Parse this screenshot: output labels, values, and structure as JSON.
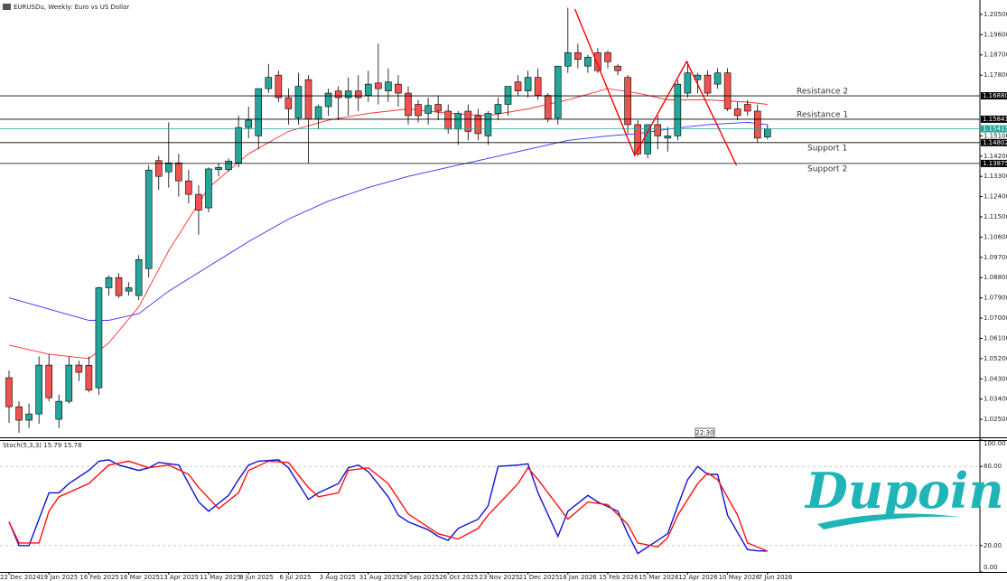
{
  "chart_data": [
    {
      "type": "candlestick",
      "title": "EURUSDu, Weekly: Euro vs US Dollar",
      "up_color": "#26a69a",
      "down_color": "#ef5350",
      "categories": [
        "22 Dec 2024",
        null,
        null,
        null,
        "19 Jan 2025",
        null,
        null,
        null,
        "16 Feb 2025",
        null,
        null,
        null,
        "16 Mar 2025",
        null,
        null,
        null,
        "13 Apr 2025",
        null,
        null,
        null,
        "11 May 2025",
        null,
        null,
        null,
        "8 Jun 2025",
        null,
        null,
        null,
        "6 Jul 2025",
        null,
        null,
        null,
        "3 Aug 2025",
        null,
        null,
        null,
        "31 Aug 2025",
        null,
        null,
        null,
        "28 Sep 2025",
        null,
        null,
        null,
        "26 Oct 2025",
        null,
        null,
        null,
        "23 Nov 2025",
        null,
        null,
        null,
        "21 Dec 2025",
        null,
        null,
        null,
        "18 Jan 2026",
        null,
        null,
        null,
        "15 Feb 2026",
        null,
        null,
        null,
        "15 Mar 2026",
        null,
        null,
        null,
        "12 Apr 2026",
        null,
        null,
        null,
        "10 May 2026",
        null,
        null,
        null,
        "7 Jun 2026"
      ],
      "ohlc": [
        [
          1.0435,
          1.0467,
          1.0234,
          1.0306
        ],
        [
          1.0306,
          1.033,
          1.019,
          1.0246
        ],
        [
          1.0246,
          1.032,
          1.021,
          1.0274
        ],
        [
          1.0274,
          1.053,
          1.023,
          1.0491
        ],
        [
          1.0491,
          1.054,
          1.033,
          1.0346
        ],
        [
          1.025,
          1.036,
          1.021,
          1.033
        ],
        [
          1.033,
          1.053,
          1.032,
          1.0491
        ],
        [
          1.0491,
          1.051,
          1.042,
          1.0459
        ],
        [
          1.049,
          1.053,
          1.037,
          1.038
        ],
        [
          1.039,
          1.084,
          1.0359,
          1.0835
        ],
        [
          1.0835,
          1.089,
          1.08,
          1.088
        ],
        [
          1.088,
          1.09,
          1.079,
          1.08
        ],
        [
          1.082,
          1.086,
          1.08,
          1.0835
        ],
        [
          1.08,
          1.098,
          1.078,
          1.096
        ],
        [
          1.092,
          1.138,
          1.088,
          1.1358
        ],
        [
          1.14,
          1.142,
          1.127,
          1.133
        ],
        [
          1.135,
          1.157,
          1.128,
          1.139
        ],
        [
          1.139,
          1.143,
          1.124,
          1.131
        ],
        [
          1.131,
          1.136,
          1.121,
          1.125
        ],
        [
          1.125,
          1.129,
          1.107,
          1.118
        ],
        [
          1.119,
          1.137,
          1.117,
          1.1363
        ],
        [
          1.136,
          1.139,
          1.133,
          1.137
        ],
        [
          1.136,
          1.141,
          1.135,
          1.1398
        ],
        [
          1.139,
          1.16,
          1.137,
          1.1547
        ],
        [
          1.1547,
          1.164,
          1.15,
          1.158
        ],
        [
          1.151,
          1.172,
          1.145,
          1.172
        ],
        [
          1.172,
          1.183,
          1.17,
          1.177
        ],
        [
          1.178,
          1.18,
          1.166,
          1.168
        ],
        [
          1.168,
          1.172,
          1.156,
          1.163
        ],
        [
          1.159,
          1.179,
          1.156,
          1.173
        ],
        [
          1.176,
          1.178,
          1.139,
          1.1585
        ],
        [
          1.1585,
          1.165,
          1.154,
          1.164
        ],
        [
          1.164,
          1.172,
          1.16,
          1.17
        ],
        [
          1.171,
          1.173,
          1.158,
          1.168
        ],
        [
          1.168,
          1.177,
          1.16,
          1.171
        ],
        [
          1.171,
          1.178,
          1.162,
          1.168
        ],
        [
          1.169,
          1.18,
          1.166,
          1.174
        ],
        [
          1.1745,
          1.192,
          1.165,
          1.172
        ],
        [
          1.171,
          1.181,
          1.166,
          1.175
        ],
        [
          1.174,
          1.178,
          1.164,
          1.17
        ],
        [
          1.17,
          1.173,
          1.156,
          1.16
        ],
        [
          1.165,
          1.167,
          1.157,
          1.16
        ],
        [
          1.161,
          1.168,
          1.156,
          1.1645
        ],
        [
          1.165,
          1.169,
          1.158,
          1.162
        ],
        [
          1.162,
          1.165,
          1.152,
          1.154
        ],
        [
          1.154,
          1.162,
          1.147,
          1.161
        ],
        [
          1.162,
          1.165,
          1.149,
          1.153
        ],
        [
          1.16,
          1.163,
          1.149,
          1.152
        ],
        [
          1.151,
          1.162,
          1.147,
          1.161
        ],
        [
          1.161,
          1.168,
          1.158,
          1.165
        ],
        [
          1.165,
          1.173,
          1.16,
          1.173
        ],
        [
          1.175,
          1.178,
          1.169,
          1.171
        ],
        [
          1.171,
          1.18,
          1.168,
          1.177
        ],
        [
          1.177,
          1.181,
          1.167,
          1.169
        ],
        [
          1.169,
          1.17,
          1.157,
          1.1585
        ],
        [
          1.159,
          1.182,
          1.156,
          1.182
        ],
        [
          1.182,
          1.208,
          1.179,
          1.188
        ],
        [
          1.188,
          1.192,
          1.181,
          1.185
        ],
        [
          1.182,
          1.187,
          1.179,
          1.186
        ],
        [
          1.188,
          1.19,
          1.179,
          1.18
        ],
        [
          1.188,
          1.189,
          1.181,
          1.184
        ],
        [
          1.182,
          1.183,
          1.178,
          1.18
        ],
        [
          1.177,
          1.178,
          1.152,
          1.156
        ],
        [
          1.156,
          1.158,
          1.142,
          1.143
        ],
        [
          1.143,
          1.156,
          1.141,
          1.156
        ],
        [
          1.156,
          1.16,
          1.145,
          1.151
        ],
        [
          1.15,
          1.155,
          1.144,
          1.151
        ],
        [
          1.151,
          1.176,
          1.149,
          1.174
        ],
        [
          1.17,
          1.184,
          1.168,
          1.179
        ],
        [
          1.176,
          1.179,
          1.17,
          1.178
        ],
        [
          1.178,
          1.18,
          1.169,
          1.17
        ],
        [
          1.174,
          1.181,
          1.172,
          1.179
        ],
        [
          1.179,
          1.181,
          1.162,
          1.163
        ],
        [
          1.163,
          1.166,
          1.158,
          1.16
        ],
        [
          1.165,
          1.167,
          1.16,
          1.162
        ],
        [
          1.162,
          1.165,
          1.148,
          1.15
        ],
        [
          1.1505,
          1.156,
          1.1495,
          1.1541
        ]
      ],
      "ma": [
        {
          "color": "#ff3030",
          "x": [
            0,
            4,
            8,
            10,
            13,
            16,
            20,
            24,
            28,
            32,
            36,
            40,
            44,
            48,
            52,
            56,
            60,
            63,
            66,
            70,
            74,
            76
          ],
          "values": [
            1.058,
            1.054,
            1.052,
            1.059,
            1.075,
            1.1,
            1.128,
            1.143,
            1.153,
            1.158,
            1.161,
            1.163,
            1.161,
            1.16,
            1.163,
            1.167,
            1.172,
            1.17,
            1.167,
            1.167,
            1.166,
            1.165
          ]
        },
        {
          "color": "#3030ff",
          "x": [
            0,
            4,
            8,
            10,
            13,
            16,
            20,
            24,
            28,
            32,
            36,
            40,
            44,
            48,
            52,
            56,
            60,
            63,
            66,
            70,
            74,
            76
          ],
          "values": [
            1.079,
            1.074,
            1.069,
            1.069,
            1.072,
            1.082,
            1.093,
            1.104,
            1.114,
            1.122,
            1.128,
            1.133,
            1.137,
            1.141,
            1.145,
            1.149,
            1.151,
            1.152,
            1.154,
            1.156,
            1.157,
            1.156
          ]
        }
      ],
      "pattern": {
        "color": "#ff0000",
        "x": [
          56.7,
          62.7,
          67.9,
          72.9
        ],
        "values": [
          1.2074,
          1.1423,
          1.1841,
          1.1379
        ]
      },
      "levels": [
        {
          "name": "Resistance 2",
          "value": 1.1688,
          "label": "1.16880"
        },
        {
          "name": "Resistance 1",
          "value": 1.15841,
          "label": "1.15841"
        },
        {
          "name": "Support 1",
          "value": 1.14802,
          "label": "1.14802"
        },
        {
          "name": "Support 2",
          "value": 1.13875,
          "label": "1.13875"
        }
      ],
      "last_price": {
        "value": 1.15415,
        "label": "1.15415",
        "color": "#26a69a"
      },
      "time_label": "22:30",
      "ylim": [
        1.017,
        1.2114
      ],
      "yticks": [
        {
          "value": 1.205,
          "label": "1.20500"
        },
        {
          "value": 1.196,
          "label": "1.19600"
        },
        {
          "value": 1.187,
          "label": "1.18700"
        },
        {
          "value": 1.178,
          "label": "1.17800"
        },
        {
          "value": 1.151,
          "label": "1.15100"
        },
        {
          "value": 1.142,
          "label": "1.14200"
        },
        {
          "value": 1.133,
          "label": "1.13300"
        },
        {
          "value": 1.124,
          "label": "1.12400"
        },
        {
          "value": 1.115,
          "label": "1.11500"
        },
        {
          "value": 1.106,
          "label": "1.10600"
        },
        {
          "value": 1.097,
          "label": "1.09700"
        },
        {
          "value": 1.088,
          "label": "1.08800"
        },
        {
          "value": 1.079,
          "label": "1.07900"
        },
        {
          "value": 1.07,
          "label": "1.07000"
        },
        {
          "value": 1.061,
          "label": "1.06100"
        },
        {
          "value": 1.052,
          "label": "1.05200"
        },
        {
          "value": 1.043,
          "label": "1.04300"
        },
        {
          "value": 1.034,
          "label": "1.03400"
        },
        {
          "value": 1.025,
          "label": "1.02500"
        }
      ]
    },
    {
      "type": "line",
      "title": "Stoch(5,3,3) 15.79 15.78",
      "series": [
        {
          "color": "#1010d0",
          "x": [
            0,
            1,
            2,
            4,
            5,
            6,
            8,
            9,
            10,
            11,
            13,
            14,
            15,
            17,
            18,
            19,
            20,
            22,
            23,
            24,
            25,
            27,
            28,
            29,
            30,
            31,
            33,
            34,
            35,
            36,
            38,
            39,
            40,
            42,
            43,
            44,
            45,
            47,
            48,
            49,
            51,
            52,
            53,
            55,
            56,
            58,
            59,
            61,
            62,
            63,
            64,
            66,
            67,
            68,
            69,
            70,
            71,
            72,
            74,
            75,
            76
          ],
          "values": [
            38,
            20,
            20,
            60,
            60,
            67,
            77,
            84,
            85,
            81,
            77,
            79,
            83,
            81,
            67,
            53,
            46,
            58,
            70,
            81,
            84,
            85,
            79,
            67,
            55,
            60,
            67,
            79,
            81,
            76,
            57,
            43,
            38,
            32,
            27,
            24,
            33,
            40,
            50,
            80,
            81,
            82,
            60,
            27,
            46,
            58,
            53,
            46,
            29,
            14,
            19,
            29,
            50,
            70,
            80,
            74,
            74,
            43,
            17,
            16,
            15.79
          ]
        },
        {
          "color": "#ff1010",
          "x": [
            0,
            1,
            3,
            4,
            5,
            8,
            10,
            12,
            14,
            16,
            18,
            19,
            21,
            23,
            24,
            26,
            28,
            30,
            31,
            33,
            34,
            36,
            38,
            40,
            43,
            45,
            47,
            48,
            51,
            52,
            53,
            55,
            56,
            58,
            60,
            62,
            63,
            65,
            66,
            67,
            69,
            70,
            71,
            73,
            74,
            76
          ],
          "values": [
            38,
            22,
            22,
            46,
            57,
            67,
            81,
            84,
            79,
            81,
            74,
            64,
            48,
            60,
            77,
            84,
            83,
            64,
            57,
            60,
            77,
            79,
            67,
            44,
            29,
            25,
            33,
            43,
            67,
            79,
            70,
            50,
            40,
            53,
            51,
            36,
            22,
            19,
            26,
            43,
            67,
            75,
            70,
            43,
            22,
            15.78
          ]
        }
      ],
      "ylim": [
        0,
        100
      ],
      "yticks": [
        {
          "value": 100,
          "label": "100.00"
        },
        {
          "value": 80,
          "label": "80.00"
        },
        {
          "value": 20,
          "label": "20.00"
        },
        {
          "value": 0,
          "label": "0.00"
        }
      ],
      "dashed_ticks": [
        80,
        20
      ]
    },
    {
      "type": "logo",
      "text": "Dupoin",
      "color": "#1fb5b8"
    }
  ]
}
